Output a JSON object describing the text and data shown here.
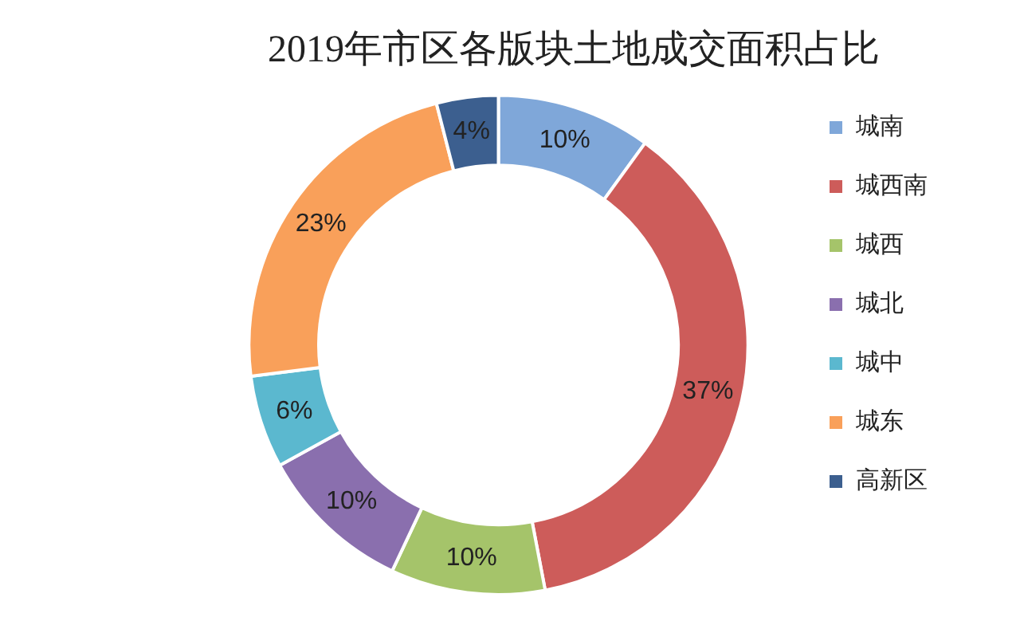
{
  "chart_data": {
    "type": "donut",
    "title": "2019年市区各版块土地成交面积占比",
    "categories": [
      "城南",
      "城西南",
      "城西",
      "城北",
      "城中",
      "城东",
      "高新区"
    ],
    "values": [
      10,
      37,
      10,
      10,
      6,
      23,
      4
    ],
    "value_labels": [
      "10%",
      "37%",
      "10%",
      "10%",
      "6%",
      "23%",
      "4%"
    ],
    "colors": [
      "#7fa7d9",
      "#cd5c5a",
      "#a5c46a",
      "#8a6fae",
      "#5bb8cf",
      "#f9a05a",
      "#3c5f8f"
    ],
    "legend": "right"
  }
}
